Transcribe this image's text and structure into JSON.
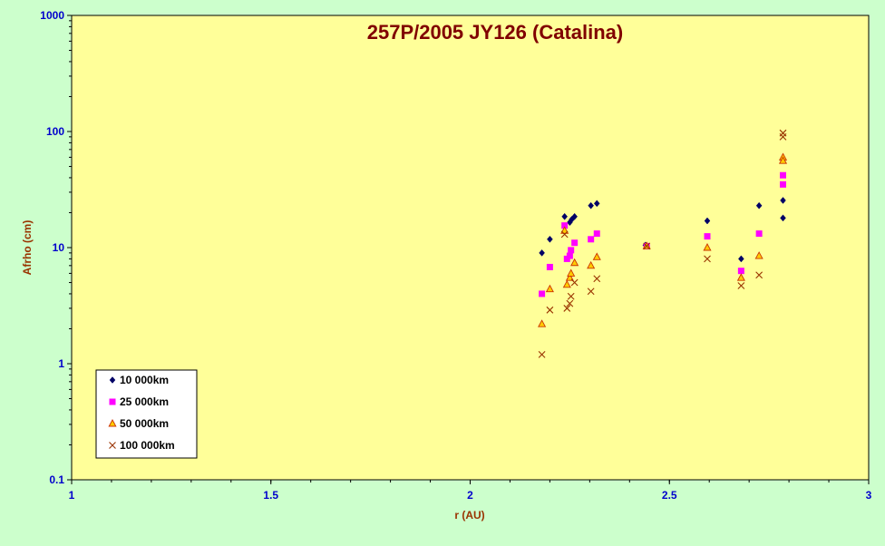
{
  "chart_data": {
    "type": "scatter",
    "title": "257P/2005 JY126 (Catalina)",
    "xlabel": "r (AU)",
    "ylabel": "Afrho (cm)",
    "xlim": [
      1,
      3
    ],
    "ylim": [
      0.1,
      1000
    ],
    "yscale": "log",
    "x_ticks": [
      1,
      1.5,
      2,
      2.5,
      3
    ],
    "x_tick_labels": [
      "1",
      "1.5",
      "2",
      "2.5",
      "3"
    ],
    "y_ticks": [
      0.1,
      1,
      10,
      100,
      1000
    ],
    "y_tick_labels": [
      "0.1",
      "1",
      "10",
      "100",
      "1000"
    ],
    "grid": false,
    "legend_position": "bottom-left",
    "plot_background": "#ffff99",
    "page_background": "#ccffcc",
    "series": [
      {
        "name": "10 000km",
        "marker": "diamond",
        "color": "#000066",
        "points": [
          [
            2.18,
            9
          ],
          [
            2.2,
            11.8
          ],
          [
            2.237,
            18.5
          ],
          [
            2.25,
            16.5
          ],
          [
            2.255,
            17.5
          ],
          [
            2.262,
            18.5
          ],
          [
            2.303,
            23
          ],
          [
            2.318,
            24
          ],
          [
            2.44,
            10.5
          ],
          [
            2.595,
            17
          ],
          [
            2.68,
            8
          ],
          [
            2.725,
            23
          ],
          [
            2.785,
            25.5
          ],
          [
            2.785,
            18
          ]
        ]
      },
      {
        "name": "25 000km",
        "marker": "square",
        "color": "#ff00ff",
        "points": [
          [
            2.18,
            4
          ],
          [
            2.2,
            6.8
          ],
          [
            2.237,
            15.5
          ],
          [
            2.243,
            8
          ],
          [
            2.25,
            8.5
          ],
          [
            2.253,
            9.5
          ],
          [
            2.262,
            11
          ],
          [
            2.303,
            11.8
          ],
          [
            2.318,
            13.2
          ],
          [
            2.443,
            10.3
          ],
          [
            2.595,
            12.5
          ],
          [
            2.68,
            6.3
          ],
          [
            2.725,
            13.2
          ],
          [
            2.785,
            42
          ],
          [
            2.785,
            35
          ]
        ]
      },
      {
        "name": "50 000km",
        "marker": "triangle",
        "color": "#ff9900",
        "points": [
          [
            2.18,
            2.2
          ],
          [
            2.2,
            4.4
          ],
          [
            2.237,
            14
          ],
          [
            2.243,
            4.8
          ],
          [
            2.25,
            5.5
          ],
          [
            2.253,
            6
          ],
          [
            2.262,
            7.4
          ],
          [
            2.303,
            7
          ],
          [
            2.318,
            8.3
          ],
          [
            2.443,
            10.3
          ],
          [
            2.595,
            10
          ],
          [
            2.68,
            5.5
          ],
          [
            2.725,
            8.5
          ],
          [
            2.785,
            60
          ],
          [
            2.785,
            56
          ]
        ]
      },
      {
        "name": "100 000km",
        "marker": "x",
        "color": "#993300",
        "points": [
          [
            2.18,
            1.2
          ],
          [
            2.2,
            2.9
          ],
          [
            2.237,
            13
          ],
          [
            2.243,
            3
          ],
          [
            2.25,
            3.3
          ],
          [
            2.253,
            3.8
          ],
          [
            2.262,
            5
          ],
          [
            2.303,
            4.2
          ],
          [
            2.318,
            5.4
          ],
          [
            2.443,
            10.3
          ],
          [
            2.595,
            8
          ],
          [
            2.68,
            4.7
          ],
          [
            2.725,
            5.8
          ],
          [
            2.785,
            97
          ],
          [
            2.785,
            90
          ]
        ]
      }
    ]
  }
}
